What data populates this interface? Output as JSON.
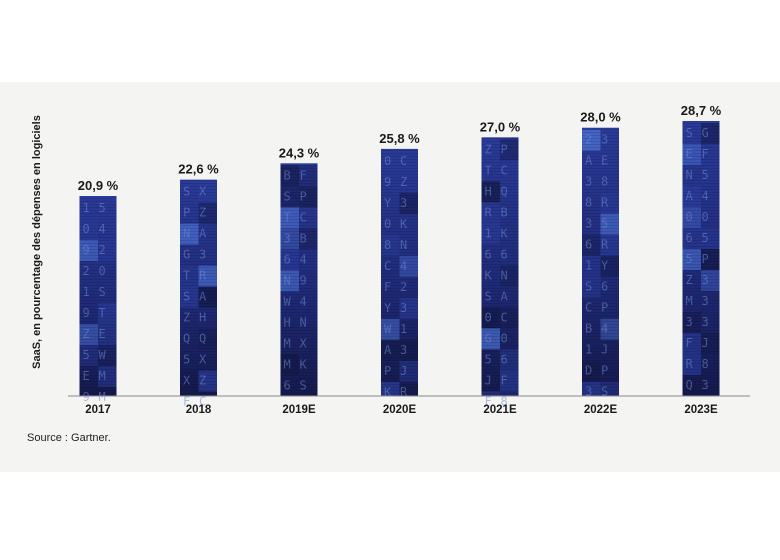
{
  "chart_data": {
    "type": "bar",
    "title": "",
    "xlabel": "",
    "ylabel": "SaaS, en pourcentage des dépenses en logiciels",
    "categories": [
      "2017",
      "2018",
      "2019E",
      "2020E",
      "2021E",
      "2022E",
      "2023E"
    ],
    "values": [
      20.9,
      22.6,
      24.3,
      25.8,
      27.0,
      28.0,
      28.7
    ],
    "value_labels": [
      "20,9 %",
      "22,6 %",
      "24,3 %",
      "25,8 %",
      "27,0 %",
      "28,0 %",
      "28,7 %"
    ],
    "grid": false,
    "legend": "none",
    "colors": {
      "bar_dark": "#141a4a",
      "bar_mid": "#2b3d9c",
      "bar_light": "#4a6fd0",
      "baseline": "#8a8a8a"
    }
  },
  "source": "Source : Gartner."
}
